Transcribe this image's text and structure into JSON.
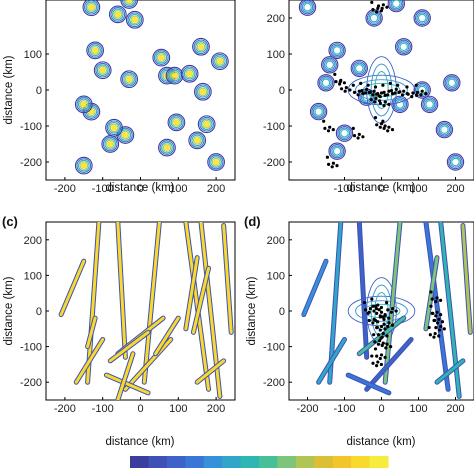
{
  "colormap": [
    "#3b3e9c",
    "#3f51b5",
    "#3d63c9",
    "#3a76d6",
    "#3691d8",
    "#31a6c9",
    "#2fb5b2",
    "#47bf98",
    "#7cc57b",
    "#b0c554",
    "#dcbf37",
    "#f2c52a",
    "#f9d92b",
    "#f7ec3c"
  ],
  "chart_data": [
    {
      "type": "contour",
      "panel_label": "",
      "xlabel": "distance (km)",
      "ylabel": "distance (km)",
      "xlim": [
        -250,
        250
      ],
      "ylim": [
        -250,
        250
      ],
      "xticks": [
        -200,
        -100,
        0,
        100,
        200
      ],
      "yticks": [
        -200,
        -100,
        0,
        100
      ],
      "blobs": [
        [
          -130,
          230
        ],
        [
          -120,
          110
        ],
        [
          -100,
          55
        ],
        [
          -30,
          250
        ],
        [
          -15,
          195
        ],
        [
          55,
          90
        ],
        [
          70,
          40
        ],
        [
          -30,
          30
        ],
        [
          90,
          40
        ],
        [
          130,
          45
        ],
        [
          160,
          120
        ],
        [
          210,
          80
        ],
        [
          165,
          -5
        ],
        [
          175,
          -95
        ],
        [
          150,
          -140
        ],
        [
          -130,
          -60
        ],
        [
          -80,
          -150
        ],
        [
          -150,
          -210
        ],
        [
          70,
          -160
        ],
        [
          -40,
          -125
        ],
        [
          -70,
          -105
        ],
        [
          -150,
          -40
        ],
        [
          200,
          -200
        ],
        [
          -60,
          210
        ],
        [
          95,
          -90
        ]
      ]
    },
    {
      "type": "contour",
      "panel_label": "",
      "xlabel": "distance (km)",
      "ylabel": "",
      "xlim": [
        -250,
        250
      ],
      "ylim": [
        -250,
        250
      ],
      "xticks": [
        -100,
        0,
        100,
        200
      ],
      "yticks": [
        -200,
        -100,
        0,
        100,
        200
      ],
      "blobs": [
        [
          -200,
          230
        ],
        [
          -120,
          110
        ],
        [
          -140,
          70
        ],
        [
          -60,
          60
        ],
        [
          -40,
          -20
        ],
        [
          50,
          -40
        ],
        [
          110,
          0
        ],
        [
          130,
          -40
        ],
        [
          170,
          -110
        ],
        [
          200,
          -200
        ],
        [
          -120,
          -170
        ],
        [
          -100,
          -120
        ],
        [
          -170,
          -60
        ],
        [
          -150,
          20
        ],
        [
          60,
          120
        ],
        [
          190,
          20
        ],
        [
          40,
          240
        ],
        [
          -20,
          200
        ],
        [
          110,
          200
        ]
      ],
      "events": [
        [
          -10,
          230
        ],
        [
          5,
          240
        ],
        [
          -110,
          30
        ],
        [
          -95,
          10
        ],
        [
          -60,
          0
        ],
        [
          -40,
          5
        ],
        [
          -20,
          0
        ],
        [
          0,
          -5
        ],
        [
          20,
          0
        ],
        [
          40,
          5
        ],
        [
          60,
          0
        ],
        [
          85,
          -5
        ],
        [
          110,
          0
        ],
        [
          -15,
          -20
        ],
        [
          10,
          -30
        ],
        [
          0,
          -90
        ],
        [
          20,
          -100
        ],
        [
          -60,
          -120
        ],
        [
          -140,
          -100
        ],
        [
          -130,
          -200
        ]
      ]
    },
    {
      "type": "contour",
      "panel_label": "(c)",
      "xlabel": "distance (km)",
      "ylabel": "distance (km)",
      "xlim": [
        -250,
        250
      ],
      "ylim": [
        -250,
        250
      ],
      "xticks": [
        -200,
        -100,
        0,
        100,
        200
      ],
      "yticks": [
        -200,
        -100,
        0,
        100,
        200
      ],
      "faults": [
        [
          [
            -60,
            250
          ],
          [
            -40,
            -130
          ]
        ],
        [
          [
            -110,
            250
          ],
          [
            -140,
            -200
          ]
        ],
        [
          [
            50,
            250
          ],
          [
            10,
            -200
          ]
        ],
        [
          [
            120,
            250
          ],
          [
            180,
            -220
          ]
        ],
        [
          [
            160,
            250
          ],
          [
            210,
            -240
          ]
        ],
        [
          [
            220,
            240
          ],
          [
            240,
            -60
          ]
        ],
        [
          [
            -150,
            140
          ],
          [
            -210,
            -10
          ]
        ],
        [
          [
            -120,
            -20
          ],
          [
            -140,
            -100
          ]
        ],
        [
          [
            -60,
            -120
          ],
          [
            60,
            -20
          ]
        ],
        [
          [
            -80,
            -140
          ],
          [
            20,
            -60
          ]
        ],
        [
          [
            -40,
            -220
          ],
          [
            80,
            -80
          ]
        ],
        [
          [
            -100,
            -80
          ],
          [
            -170,
            -200
          ]
        ],
        [
          [
            150,
            150
          ],
          [
            120,
            -50
          ]
        ],
        [
          [
            180,
            120
          ],
          [
            140,
            -60
          ]
        ],
        [
          [
            -90,
            -180
          ],
          [
            20,
            -230
          ]
        ],
        [
          [
            -60,
            -250
          ],
          [
            -20,
            -120
          ]
        ],
        [
          [
            100,
            -20
          ],
          [
            40,
            -120
          ]
        ],
        [
          [
            220,
            -140
          ],
          [
            150,
            -200
          ]
        ]
      ]
    },
    {
      "type": "contour",
      "panel_label": "(d)",
      "xlabel": "distance (km)",
      "ylabel": "distance (km)",
      "xlim": [
        -250,
        250
      ],
      "ylim": [
        -250,
        250
      ],
      "xticks": [
        -200,
        -100,
        0,
        100,
        200
      ],
      "yticks": [
        -200,
        -100,
        0,
        100,
        200
      ],
      "faults": [
        [
          [
            -60,
            250
          ],
          [
            -40,
            -130
          ]
        ],
        [
          [
            -110,
            250
          ],
          [
            -140,
            -200
          ]
        ],
        [
          [
            50,
            250
          ],
          [
            10,
            -200
          ]
        ],
        [
          [
            120,
            250
          ],
          [
            180,
            -220
          ]
        ],
        [
          [
            160,
            250
          ],
          [
            210,
            -240
          ]
        ],
        [
          [
            220,
            240
          ],
          [
            240,
            -60
          ]
        ],
        [
          [
            -150,
            140
          ],
          [
            -210,
            -10
          ]
        ],
        [
          [
            -60,
            -120
          ],
          [
            60,
            -20
          ]
        ],
        [
          [
            -40,
            -220
          ],
          [
            80,
            -80
          ]
        ],
        [
          [
            -100,
            -80
          ],
          [
            -170,
            -200
          ]
        ],
        [
          [
            150,
            150
          ],
          [
            120,
            -50
          ]
        ],
        [
          [
            -90,
            -180
          ],
          [
            20,
            -230
          ]
        ],
        [
          [
            220,
            -140
          ],
          [
            150,
            -200
          ]
        ]
      ],
      "events": [
        [
          -30,
          10
        ],
        [
          -10,
          20
        ],
        [
          0,
          0
        ],
        [
          10,
          -10
        ],
        [
          0,
          -40
        ],
        [
          5,
          -60
        ],
        [
          -5,
          -80
        ],
        [
          15,
          -90
        ],
        [
          0,
          -120
        ],
        [
          -10,
          -140
        ],
        [
          20,
          -30
        ],
        [
          30,
          10
        ],
        [
          -20,
          -20
        ],
        [
          150,
          40
        ],
        [
          150,
          0
        ],
        [
          155,
          -20
        ],
        [
          160,
          -40
        ],
        [
          145,
          -60
        ]
      ]
    }
  ]
}
